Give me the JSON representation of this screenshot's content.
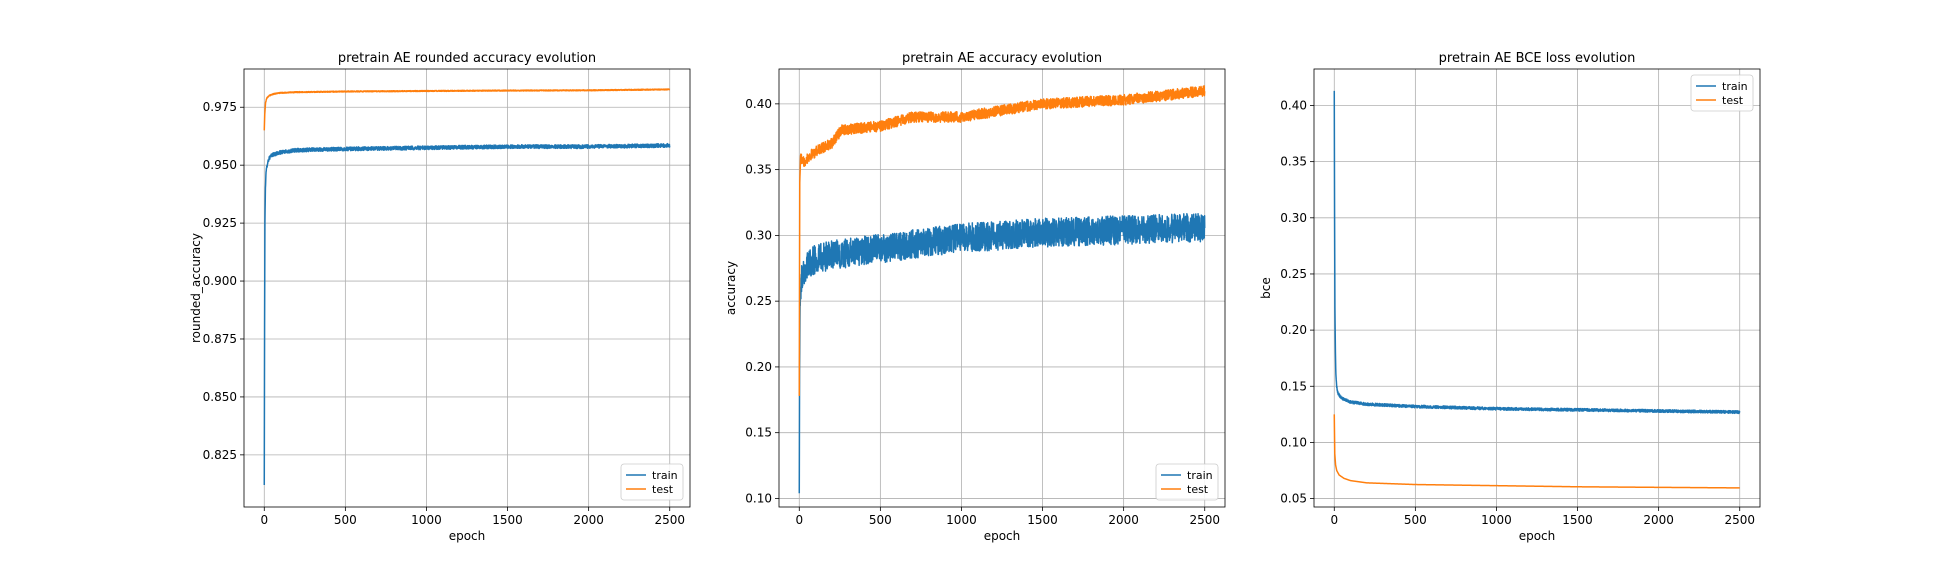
{
  "chart_data": [
    {
      "type": "line",
      "title": "pretrain AE rounded accuracy evolution",
      "xlabel": "epoch",
      "ylabel": "rounded_accuracy",
      "xlim": [
        -125,
        2625
      ],
      "ylim": [
        0.8025,
        0.9915
      ],
      "xticks": [
        0,
        500,
        1000,
        1500,
        2000,
        2500
      ],
      "yticks": [
        0.825,
        0.85,
        0.875,
        0.9,
        0.925,
        0.95,
        0.975
      ],
      "ytick_labels": [
        "0.825",
        "0.850",
        "0.875",
        "0.900",
        "0.925",
        "0.950",
        "0.975"
      ],
      "grid": true,
      "legend_position": "lower right",
      "series": [
        {
          "name": "train",
          "color": "#1f77b4",
          "noise": 0.0008,
          "x": [
            0,
            2,
            4,
            7,
            10,
            15,
            20,
            30,
            50,
            100,
            200,
            500,
            1000,
            1500,
            2000,
            2500
          ],
          "y": [
            0.812,
            0.88,
            0.925,
            0.94,
            0.946,
            0.949,
            0.951,
            0.953,
            0.9545,
            0.9555,
            0.9565,
            0.957,
            0.9575,
            0.958,
            0.958,
            0.9585
          ]
        },
        {
          "name": "test",
          "color": "#ff7f0e",
          "noise": 0.0002,
          "x": [
            0,
            3,
            8,
            15,
            30,
            60,
            100,
            200,
            500,
            1000,
            1500,
            2000,
            2500
          ],
          "y": [
            0.965,
            0.972,
            0.977,
            0.979,
            0.98,
            0.9808,
            0.9812,
            0.9815,
            0.9818,
            0.982,
            0.9822,
            0.9823,
            0.9827
          ]
        }
      ]
    },
    {
      "type": "line",
      "title": "pretrain AE accuracy evolution",
      "xlabel": "epoch",
      "ylabel": "accuracy",
      "xlim": [
        -125,
        2625
      ],
      "ylim": [
        0.0935,
        0.4265
      ],
      "xticks": [
        0,
        500,
        1000,
        1500,
        2000,
        2500
      ],
      "yticks": [
        0.1,
        0.15,
        0.2,
        0.25,
        0.3,
        0.35,
        0.4
      ],
      "ytick_labels": [
        "0.10",
        "0.15",
        "0.20",
        "0.25",
        "0.30",
        "0.35",
        "0.40"
      ],
      "grid": true,
      "legend_position": "lower right",
      "series": [
        {
          "name": "train",
          "color": "#1f77b4",
          "noise": 0.011,
          "x": [
            0,
            2,
            5,
            10,
            20,
            50,
            100,
            200,
            500,
            800,
            1000,
            1500,
            2000,
            2500
          ],
          "y": [
            0.104,
            0.2,
            0.245,
            0.262,
            0.272,
            0.278,
            0.282,
            0.285,
            0.29,
            0.295,
            0.298,
            0.302,
            0.304,
            0.306
          ]
        },
        {
          "name": "test",
          "color": "#ff7f0e",
          "noise": 0.004,
          "x": [
            0,
            3,
            8,
            20,
            60,
            120,
            200,
            260,
            500,
            700,
            1000,
            1250,
            1500,
            2000,
            2300,
            2500
          ],
          "y": [
            0.178,
            0.34,
            0.36,
            0.355,
            0.36,
            0.365,
            0.37,
            0.38,
            0.383,
            0.39,
            0.39,
            0.395,
            0.4,
            0.403,
            0.407,
            0.41
          ]
        }
      ]
    },
    {
      "type": "line",
      "title": "pretrain AE BCE loss evolution",
      "xlabel": "epoch",
      "ylabel": "bce",
      "xlim": [
        -125,
        2625
      ],
      "ylim": [
        0.0425,
        0.4325
      ],
      "xticks": [
        0,
        500,
        1000,
        1500,
        2000,
        2500
      ],
      "yticks": [
        0.05,
        0.1,
        0.15,
        0.2,
        0.25,
        0.3,
        0.35,
        0.4
      ],
      "ytick_labels": [
        "0.05",
        "0.10",
        "0.15",
        "0.20",
        "0.25",
        "0.30",
        "0.35",
        "0.40"
      ],
      "grid": true,
      "legend_position": "upper right",
      "series": [
        {
          "name": "train",
          "color": "#1f77b4",
          "noise": 0.0012,
          "x": [
            0,
            2,
            4,
            7,
            10,
            15,
            20,
            30,
            50,
            100,
            200,
            500,
            1000,
            1500,
            2000,
            2500
          ],
          "y": [
            0.413,
            0.3,
            0.22,
            0.18,
            0.16,
            0.15,
            0.145,
            0.142,
            0.139,
            0.136,
            0.134,
            0.132,
            0.13,
            0.129,
            0.128,
            0.127
          ]
        },
        {
          "name": "test",
          "color": "#ff7f0e",
          "noise": 0,
          "x": [
            0,
            3,
            8,
            15,
            30,
            60,
            100,
            200,
            500,
            1000,
            1500,
            2000,
            2500
          ],
          "y": [
            0.125,
            0.09,
            0.08,
            0.075,
            0.071,
            0.068,
            0.066,
            0.064,
            0.0625,
            0.0615,
            0.0605,
            0.06,
            0.0595
          ]
        }
      ]
    }
  ]
}
